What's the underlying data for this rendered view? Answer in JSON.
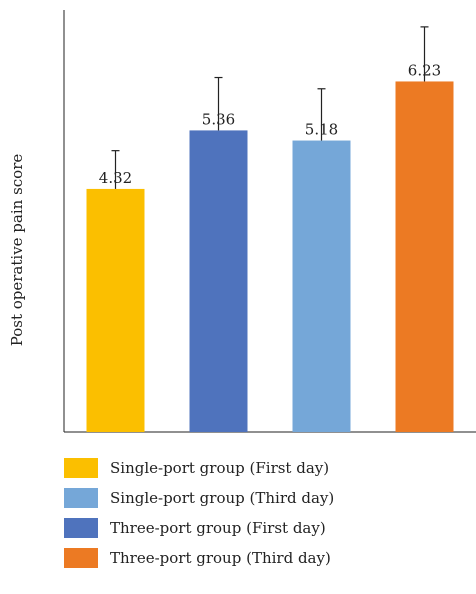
{
  "chart_data": {
    "type": "bar",
    "title": "",
    "xlabel": "",
    "ylabel": "Post operative pain score",
    "ylim": [
      0,
      7.5
    ],
    "grid": false,
    "legend_position": "bottom",
    "categories": [
      "Single-port group (First day)",
      "Three-port group (First day)",
      "Single-port group (Third day)",
      "Three-port group (Third day)"
    ],
    "values": [
      4.32,
      5.36,
      5.18,
      6.23
    ],
    "value_labels": [
      "4.32",
      "5.36",
      "5.18",
      "6.23"
    ],
    "error_upper": [
      5.0,
      6.3,
      6.1,
      7.2
    ],
    "colors": [
      "#fbbf00",
      "#4f73bd",
      "#75a7d8",
      "#ec7a23"
    ]
  },
  "legend": [
    {
      "label": "Single-port group (First day)",
      "color": "#fbbf00"
    },
    {
      "label": "Single-port group (Third day)",
      "color": "#75a7d8"
    },
    {
      "label": "Three-port group (First day)",
      "color": "#4f73bd"
    },
    {
      "label": "Three-port group (Third day)",
      "color": "#ec7a23"
    }
  ]
}
